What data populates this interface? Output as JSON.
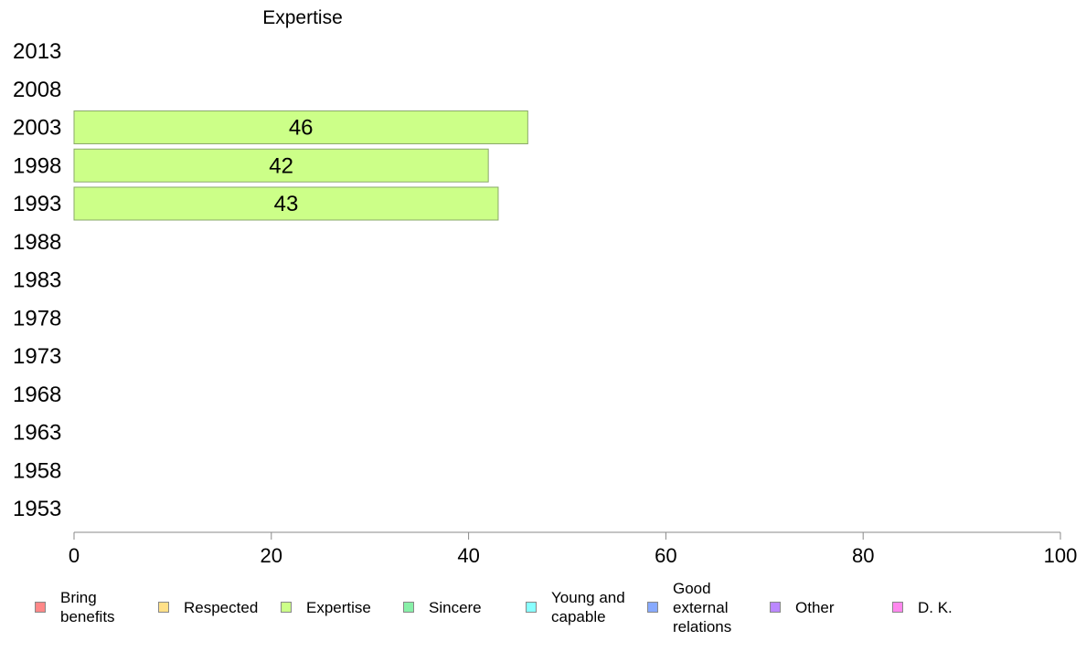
{
  "chart_data": {
    "type": "bar",
    "orientation": "horizontal",
    "title": "Expertise",
    "categories": [
      "1953",
      "1958",
      "1963",
      "1968",
      "1973",
      "1978",
      "1983",
      "1988",
      "1993",
      "1998",
      "2003",
      "2008",
      "2013"
    ],
    "series": [
      {
        "name": "Expertise",
        "color": "#ccff88",
        "values": [
          null,
          null,
          null,
          null,
          null,
          null,
          null,
          null,
          43,
          42,
          46,
          null,
          null
        ]
      }
    ],
    "xlim": [
      0,
      100
    ],
    "xticks": [
      "0",
      "20",
      "40",
      "60",
      "80",
      "100"
    ],
    "grid": false,
    "legend_position": "bottom",
    "legend": [
      {
        "label": "Bring\nbenefits",
        "color": "#ff8888"
      },
      {
        "label": "Respected",
        "color": "#ffe088"
      },
      {
        "label": "Expertise",
        "color": "#ccff88"
      },
      {
        "label": "Sincere",
        "color": "#88f0a8"
      },
      {
        "label": "Young and\ncapable",
        "color": "#88ffff"
      },
      {
        "label": "Good\nexternal\nrelations",
        "color": "#88aaff"
      },
      {
        "label": "Other",
        "color": "#bb88ff"
      },
      {
        "label": "D. K.",
        "color": "#ff88ee"
      }
    ]
  }
}
